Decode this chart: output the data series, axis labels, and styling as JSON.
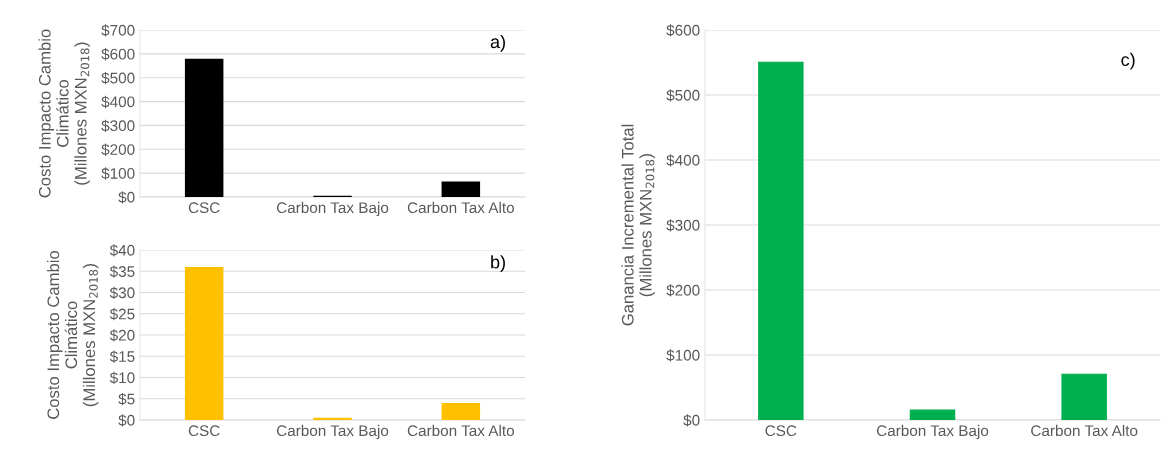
{
  "chart_data": [
    {
      "type": "bar",
      "categories": [
        "CSC",
        "Carbon Tax Bajo",
        "Carbon Tax Alto"
      ],
      "values": [
        580,
        5,
        65
      ],
      "color": "#000000",
      "ylabel": "Costo Impacto Cambio\nClimático\n(Millones MXN$_{2018}$)",
      "annotations": [
        "a)"
      ],
      "ylim": [
        0,
        700
      ],
      "yticks": [
        {
          "value": 0,
          "label": "$0"
        },
        {
          "value": 100,
          "label": "$100"
        },
        {
          "value": 200,
          "label": "$200"
        },
        {
          "value": 300,
          "label": "$300"
        },
        {
          "value": 400,
          "label": "$400"
        },
        {
          "value": 500,
          "label": "$500"
        },
        {
          "value": 600,
          "label": "$600"
        },
        {
          "value": 700,
          "label": "$700"
        }
      ],
      "grid": "y"
    },
    {
      "type": "bar",
      "categories": [
        "CSC",
        "Carbon Tax Bajo",
        "Carbon Tax Alto"
      ],
      "values": [
        36,
        0.5,
        4
      ],
      "color": "#ffc000",
      "ylabel": "Costo Impacto Cambio\nClimático\n(Millones MXN$_{2018}$)",
      "annotations": [
        "b)"
      ],
      "ylim": [
        0,
        40
      ],
      "yticks": [
        {
          "value": 0,
          "label": "$0"
        },
        {
          "value": 5,
          "label": "$5"
        },
        {
          "value": 10,
          "label": "$10"
        },
        {
          "value": 15,
          "label": "$15"
        },
        {
          "value": 20,
          "label": "$20"
        },
        {
          "value": 25,
          "label": "$25"
        },
        {
          "value": 30,
          "label": "$30"
        },
        {
          "value": 35,
          "label": "$35"
        },
        {
          "value": 40,
          "label": "$40"
        }
      ],
      "grid": "y"
    },
    {
      "type": "bar",
      "categories": [
        "CSC",
        "Carbon Tax Bajo",
        "Carbon Tax Alto"
      ],
      "values": [
        551,
        16,
        71
      ],
      "color": "#00b050",
      "ylabel": "Ganancia Incremental Total\n(Millones MXN$_{2018}$)",
      "annotations": [
        "c)"
      ],
      "ylim": [
        0,
        600
      ],
      "yticks": [
        {
          "value": 0,
          "label": "$0"
        },
        {
          "value": 100,
          "label": "$100"
        },
        {
          "value": 200,
          "label": "$200"
        },
        {
          "value": 300,
          "label": "$300"
        },
        {
          "value": 400,
          "label": "$400"
        },
        {
          "value": 500,
          "label": "$500"
        },
        {
          "value": 600,
          "label": "$600"
        }
      ],
      "grid": "y"
    }
  ]
}
